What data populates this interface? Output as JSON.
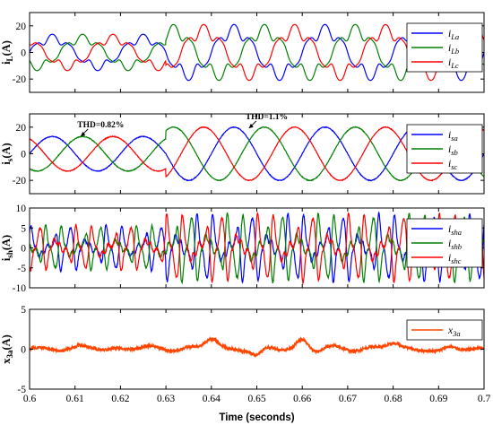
{
  "chart_data": [
    {
      "type": "line",
      "ylabel": "i_L(A)",
      "ylabel_main": "i",
      "ylabel_sub": "L",
      "ylabel_unit": "(A)",
      "ylim": [
        -30,
        30
      ],
      "yticks": [
        20,
        0,
        -20
      ],
      "xlim": [
        0.6,
        0.7
      ],
      "x": "time 0.6 to 0.7 s, fundamental 50 Hz",
      "waveform": "distorted load currents (rectifier-type, flat-top)",
      "legend_position": "top-right",
      "series": [
        {
          "name": "i_La",
          "label_main": "i",
          "label_sub": "La",
          "color": "#0000ff",
          "phase_deg": 0,
          "amplitude_before_0.63": 13,
          "amplitude_after_0.63": 20
        },
        {
          "name": "i_Lb",
          "label_main": "i",
          "label_sub": "Lb",
          "color": "#008000",
          "phase_deg": -120,
          "amplitude_before_0.63": 13,
          "amplitude_after_0.63": 20
        },
        {
          "name": "i_Lc",
          "label_main": "i",
          "label_sub": "Lc",
          "color": "#ff0000",
          "phase_deg": 120,
          "amplitude_before_0.63": 13,
          "amplitude_after_0.63": 20
        }
      ]
    },
    {
      "type": "line",
      "ylabel": "i_s(A)",
      "ylabel_main": "i",
      "ylabel_sub": "s",
      "ylabel_unit": "(A)",
      "ylim": [
        -30,
        30
      ],
      "yticks": [
        20,
        0,
        -20
      ],
      "xlim": [
        0.6,
        0.7
      ],
      "waveform": "sinusoidal source currents",
      "legend_position": "top-right",
      "annotations": [
        {
          "text": "THD=0.82%",
          "x": 0.6105,
          "y": 20
        },
        {
          "text": "THD=1.1%",
          "x": 0.6475,
          "y": 26
        }
      ],
      "series": [
        {
          "name": "i_sa",
          "label_main": "i",
          "label_sub": "sa",
          "color": "#0000ff",
          "phase_deg": 0,
          "amplitude_before_0.63": 13,
          "amplitude_after_0.63": 20
        },
        {
          "name": "i_sb",
          "label_main": "i",
          "label_sub": "sb",
          "color": "#008000",
          "phase_deg": -120,
          "amplitude_before_0.63": 13,
          "amplitude_after_0.63": 20
        },
        {
          "name": "i_sc",
          "label_main": "i",
          "label_sub": "sc",
          "color": "#ff0000",
          "phase_deg": 120,
          "amplitude_before_0.63": 13,
          "amplitude_after_0.63": 20
        }
      ]
    },
    {
      "type": "line",
      "ylabel": "i_sh(A)",
      "ylabel_main": "i",
      "ylabel_sub": "sh",
      "ylabel_unit": "(A)",
      "ylim": [
        -10,
        10
      ],
      "yticks": [
        10,
        5,
        0,
        -5,
        -10
      ],
      "xlim": [
        0.6,
        0.7
      ],
      "waveform": "harmonic shunt compensation currents",
      "legend_position": "top-right",
      "series": [
        {
          "name": "i_sha",
          "label_main": "i",
          "label_sub": "sha",
          "color": "#0000ff",
          "phase_deg": 0,
          "peak_before_0.63": 6,
          "peak_after_0.63": 9
        },
        {
          "name": "i_shb",
          "label_main": "i",
          "label_sub": "shb",
          "color": "#008000",
          "phase_deg": -120,
          "peak_before_0.63": 6,
          "peak_after_0.63": 9
        },
        {
          "name": "i_shc",
          "label_main": "i",
          "label_sub": "shc",
          "color": "#ff0000",
          "phase_deg": 120,
          "peak_before_0.63": 6,
          "peak_after_0.63": 9
        }
      ]
    },
    {
      "type": "line",
      "ylabel": "x_3a(A)",
      "ylabel_main": "x",
      "ylabel_sub": "3a",
      "ylabel_unit": "(A)",
      "ylim": [
        -5,
        5
      ],
      "yticks": [
        5,
        0,
        -5
      ],
      "xlim": [
        0.6,
        0.7
      ],
      "xticks": [
        0.6,
        0.61,
        0.62,
        0.63,
        0.64,
        0.65,
        0.66,
        0.67,
        0.68,
        0.69,
        0.7
      ],
      "xtick_labels": [
        "0.6",
        "0.61",
        "0.62",
        "0.63",
        "0.64",
        "0.65",
        "0.66",
        "0.67",
        "0.68",
        "0.69",
        "0.7"
      ],
      "xlabel": "Time (seconds)",
      "waveform": "small ripple around 0, roughly -1.2 to 1.5",
      "legend_position": "top-right",
      "series": [
        {
          "name": "x_3a",
          "label_main": "x",
          "label_sub": "3a",
          "color": "#ff4500"
        }
      ]
    }
  ]
}
